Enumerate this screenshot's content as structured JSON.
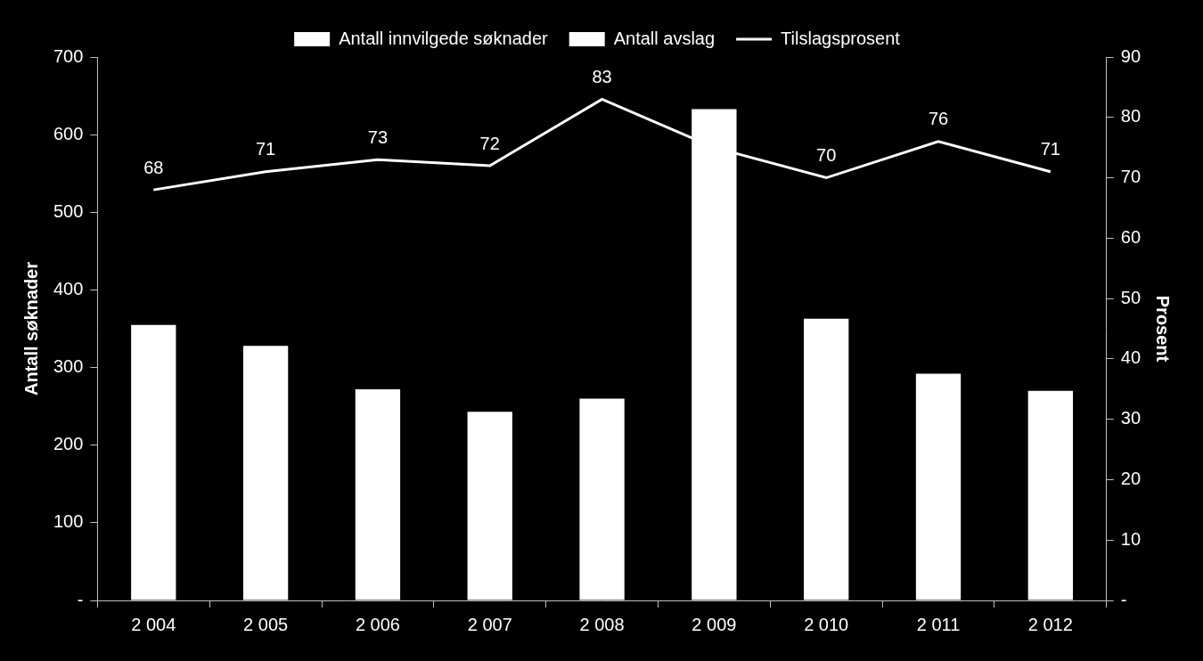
{
  "chart_data": {
    "type": "bar",
    "categories": [
      "2 004",
      "2 005",
      "2 006",
      "2 007",
      "2 008",
      "2 009",
      "2 010",
      "2 011",
      "2 012"
    ],
    "series": [
      {
        "name": "Antall innvilgede søknader",
        "type": "bar",
        "color": "#ffffff",
        "values": [
          355,
          328,
          272,
          243,
          260,
          633,
          363,
          292,
          270
        ]
      },
      {
        "name": "Antall avslag",
        "type": "bar",
        "color": "#ffffff",
        "values": [
          null,
          null,
          null,
          null,
          null,
          null,
          null,
          null,
          null
        ]
      },
      {
        "name": "Tilslagsprosent",
        "type": "line",
        "color": "#ffffff",
        "axis": "y2",
        "data_labels": true,
        "values": [
          68,
          71,
          73,
          72,
          83,
          75,
          70,
          76,
          71
        ],
        "value_labels": [
          "68",
          "71",
          "73",
          "72",
          "83",
          null,
          "70",
          "76",
          "71"
        ]
      }
    ],
    "y_label": "Antall søknader",
    "y2_label": "Prosent",
    "ylim": [
      0,
      700
    ],
    "yticks": [
      {
        "value": 0,
        "label": "-"
      },
      100,
      200,
      300,
      400,
      500,
      600,
      700
    ],
    "y2lim": [
      0,
      90
    ],
    "y2ticks": [
      {
        "value": 0,
        "label": "-"
      },
      10,
      20,
      30,
      40,
      50,
      60,
      70,
      80,
      90
    ],
    "legend": "top",
    "grid": false
  }
}
